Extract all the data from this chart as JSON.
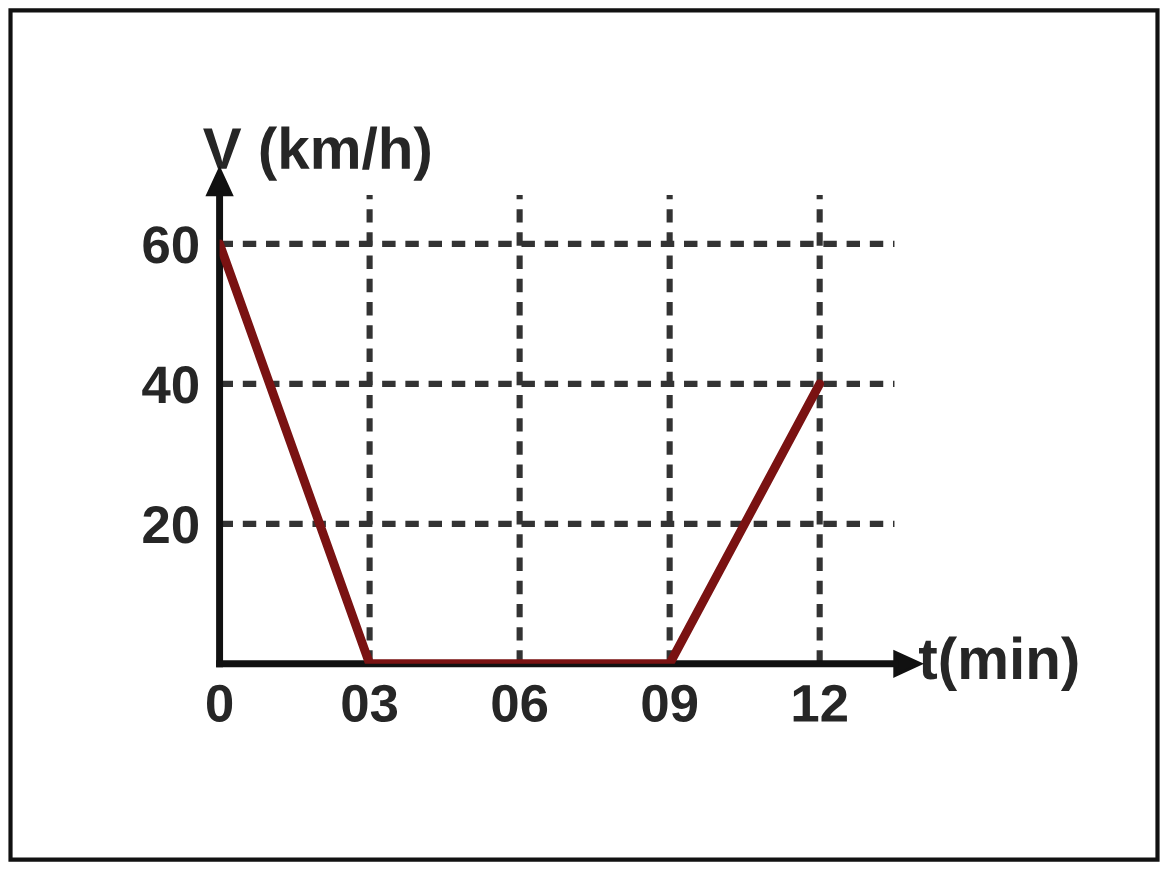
{
  "chart_data": {
    "type": "line",
    "xlabel": "t(min)",
    "ylabel": "V (km/h)",
    "x": [
      0,
      3,
      9,
      12
    ],
    "series": [
      {
        "color": "#7a1212",
        "values": [
          60,
          0,
          0,
          40
        ]
      }
    ],
    "xlim": [
      0,
      13.5
    ],
    "ylim": [
      0,
      67
    ],
    "xticks": [
      0,
      {
        "value": 3,
        "label": "03"
      },
      {
        "value": 6,
        "label": "06"
      },
      {
        "value": 9,
        "label": "09"
      },
      {
        "value": 12,
        "label": "12"
      }
    ],
    "yticks": [
      20,
      40,
      60
    ],
    "grid": true
  }
}
